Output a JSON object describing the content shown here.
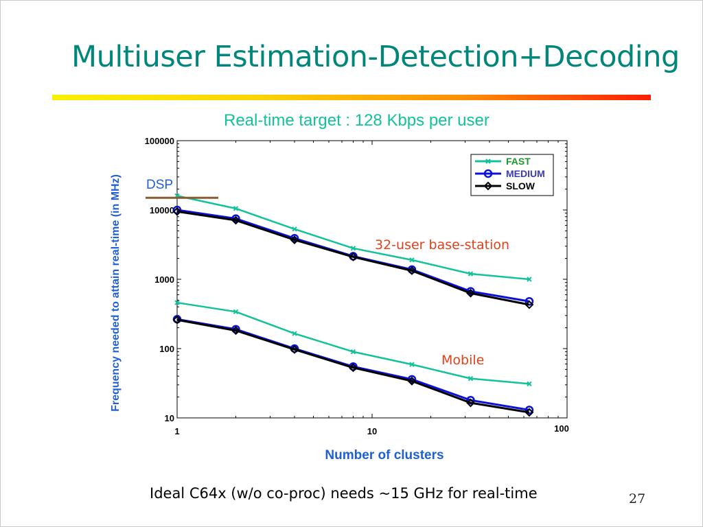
{
  "slide": {
    "title": "Multiuser Estimation-Detection+Decoding",
    "footnote": "Ideal C64x (w/o co-proc) needs ~15 GHz for real-time",
    "page_number": "27"
  },
  "colors": {
    "title": "#00867a",
    "subtitle": "#13c29a",
    "axis_label": "#1e5fd6",
    "fast": "#13c29a",
    "medium": "#0a12d8",
    "slow": "#000000",
    "annotation_red": "#e0401a",
    "dsp_label": "#1e5fd6",
    "dsp_line": "#8a5a32"
  },
  "chart_data": {
    "type": "line",
    "title": "Real-time target : 128 Kbps per user",
    "xlabel": "Number of clusters",
    "ylabel": "Frequency needed to attain real-time (in MHz)",
    "xscale": "log",
    "yscale": "log",
    "xlim": [
      1,
      100
    ],
    "ylim": [
      10,
      100000
    ],
    "x_ticks": [
      "1",
      "10",
      "100"
    ],
    "y_ticks": [
      "10",
      "100",
      "1000",
      "10000",
      "100000"
    ],
    "x": [
      1,
      2,
      4,
      8,
      16,
      32,
      64
    ],
    "legend_position": "top-right",
    "legend": [
      "FAST",
      "MEDIUM",
      "SLOW"
    ],
    "series": [
      {
        "name": "FAST",
        "group": "32-user base-station",
        "marker": "x",
        "values": [
          16000,
          10500,
          5300,
          2800,
          1900,
          1200,
          1000
        ]
      },
      {
        "name": "MEDIUM",
        "group": "32-user base-station",
        "marker": "o",
        "values": [
          10000,
          7500,
          3900,
          2150,
          1380,
          670,
          480
        ]
      },
      {
        "name": "SLOW",
        "group": "32-user base-station",
        "marker": "diamond",
        "values": [
          9500,
          7100,
          3700,
          2100,
          1330,
          630,
          430
        ]
      },
      {
        "name": "FAST",
        "group": "Mobile",
        "marker": "x",
        "values": [
          460,
          340,
          165,
          90,
          59,
          37,
          31
        ]
      },
      {
        "name": "MEDIUM",
        "group": "Mobile",
        "marker": "o",
        "values": [
          265,
          190,
          100,
          55,
          36,
          18,
          13
        ]
      },
      {
        "name": "SLOW",
        "group": "Mobile",
        "marker": "diamond",
        "values": [
          260,
          182,
          97,
          53,
          34,
          16.5,
          12
        ]
      }
    ],
    "annotations": [
      {
        "text": "32-user base-station"
      },
      {
        "text": "Mobile"
      },
      {
        "text": "DSP",
        "y": 15000
      }
    ],
    "grid": false
  }
}
